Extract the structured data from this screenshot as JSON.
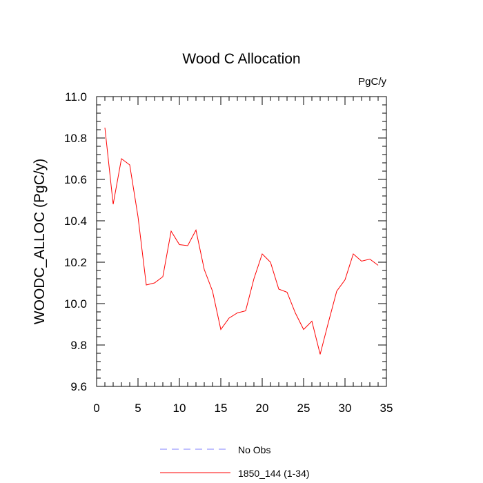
{
  "chart_data": {
    "type": "line",
    "title": "Wood C Allocation",
    "units_label": "PgC/y",
    "xlabel": "",
    "ylabel": "WOODC_ALLOC  (PgC/y)",
    "xlim": [
      0,
      35
    ],
    "ylim": [
      9.6,
      11.0
    ],
    "x_ticks": [
      0,
      5,
      10,
      15,
      20,
      25,
      30,
      35
    ],
    "y_ticks": [
      9.6,
      9.8,
      10.0,
      10.2,
      10.4,
      10.6,
      10.8,
      11.0
    ],
    "y_tick_labels": [
      "9.6",
      "9.8",
      "10.0",
      "10.2",
      "10.4",
      "10.6",
      "10.8",
      "11.0"
    ],
    "grid": false,
    "legend_position": "bottom",
    "series": [
      {
        "name": "1850_144 (1-34)",
        "color": "#ff0000",
        "dash": "solid",
        "x": [
          1,
          2,
          3,
          4,
          5,
          6,
          7,
          8,
          9,
          10,
          11,
          12,
          13,
          14,
          15,
          16,
          17,
          18,
          19,
          20,
          21,
          22,
          23,
          24,
          25,
          26,
          27,
          28,
          29,
          30,
          31,
          32,
          33,
          34
        ],
        "values": [
          10.85,
          10.48,
          10.7,
          10.67,
          10.42,
          10.09,
          10.1,
          10.13,
          10.35,
          10.285,
          10.28,
          10.355,
          10.165,
          10.06,
          9.875,
          9.93,
          9.955,
          9.965,
          10.12,
          10.24,
          10.2,
          10.07,
          10.055,
          9.955,
          9.875,
          9.915,
          9.755,
          9.91,
          10.06,
          10.115,
          10.24,
          10.205,
          10.215,
          10.185
        ]
      }
    ],
    "legend": [
      {
        "label": "No Obs",
        "color": "#8080ff",
        "dash": "dashed"
      },
      {
        "label": "1850_144 (1-34)",
        "color": "#ff0000",
        "dash": "solid"
      }
    ]
  }
}
